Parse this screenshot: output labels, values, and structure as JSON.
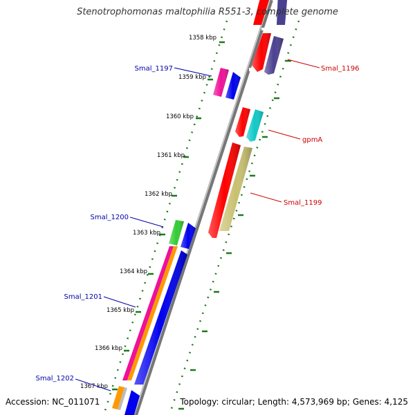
{
  "title": "Stenotrophomonas maltophilia R551-3, complete genome",
  "accession": "Accession: NC_011071",
  "topology": "Topology: circular; Length: 4,573,969 bp; Genes: 4,125",
  "ticks": [
    "1358 kbp",
    "1359 kbp",
    "1360 kbp",
    "1361 kbp",
    "1362 kbp",
    "1363 kbp",
    "1364 kbp",
    "1365 kbp",
    "1366 kbp",
    "1367 kbp"
  ],
  "gene_labels": {
    "smal_1196": "Smal_1196",
    "smal_1197": "Smal_1197",
    "gpmA": "gpmA",
    "smal_1199": "Smal_1199",
    "smal_1200": "Smal_1200",
    "smal_1201": "Smal_1201",
    "smal_1202": "Smal_1202"
  },
  "colors": {
    "backbone": "#7a7a7a",
    "tick_green": "#1a7a1a",
    "label_red": "#cc0000",
    "label_blue": "#0000aa",
    "red": "#ff0000",
    "slate": "#4a4090",
    "magenta": "#ee1199",
    "blue": "#0000ee",
    "cyan": "#11c8c8",
    "khaki": "#c8c070",
    "green": "#33cc33",
    "orange": "#ff9900"
  }
}
